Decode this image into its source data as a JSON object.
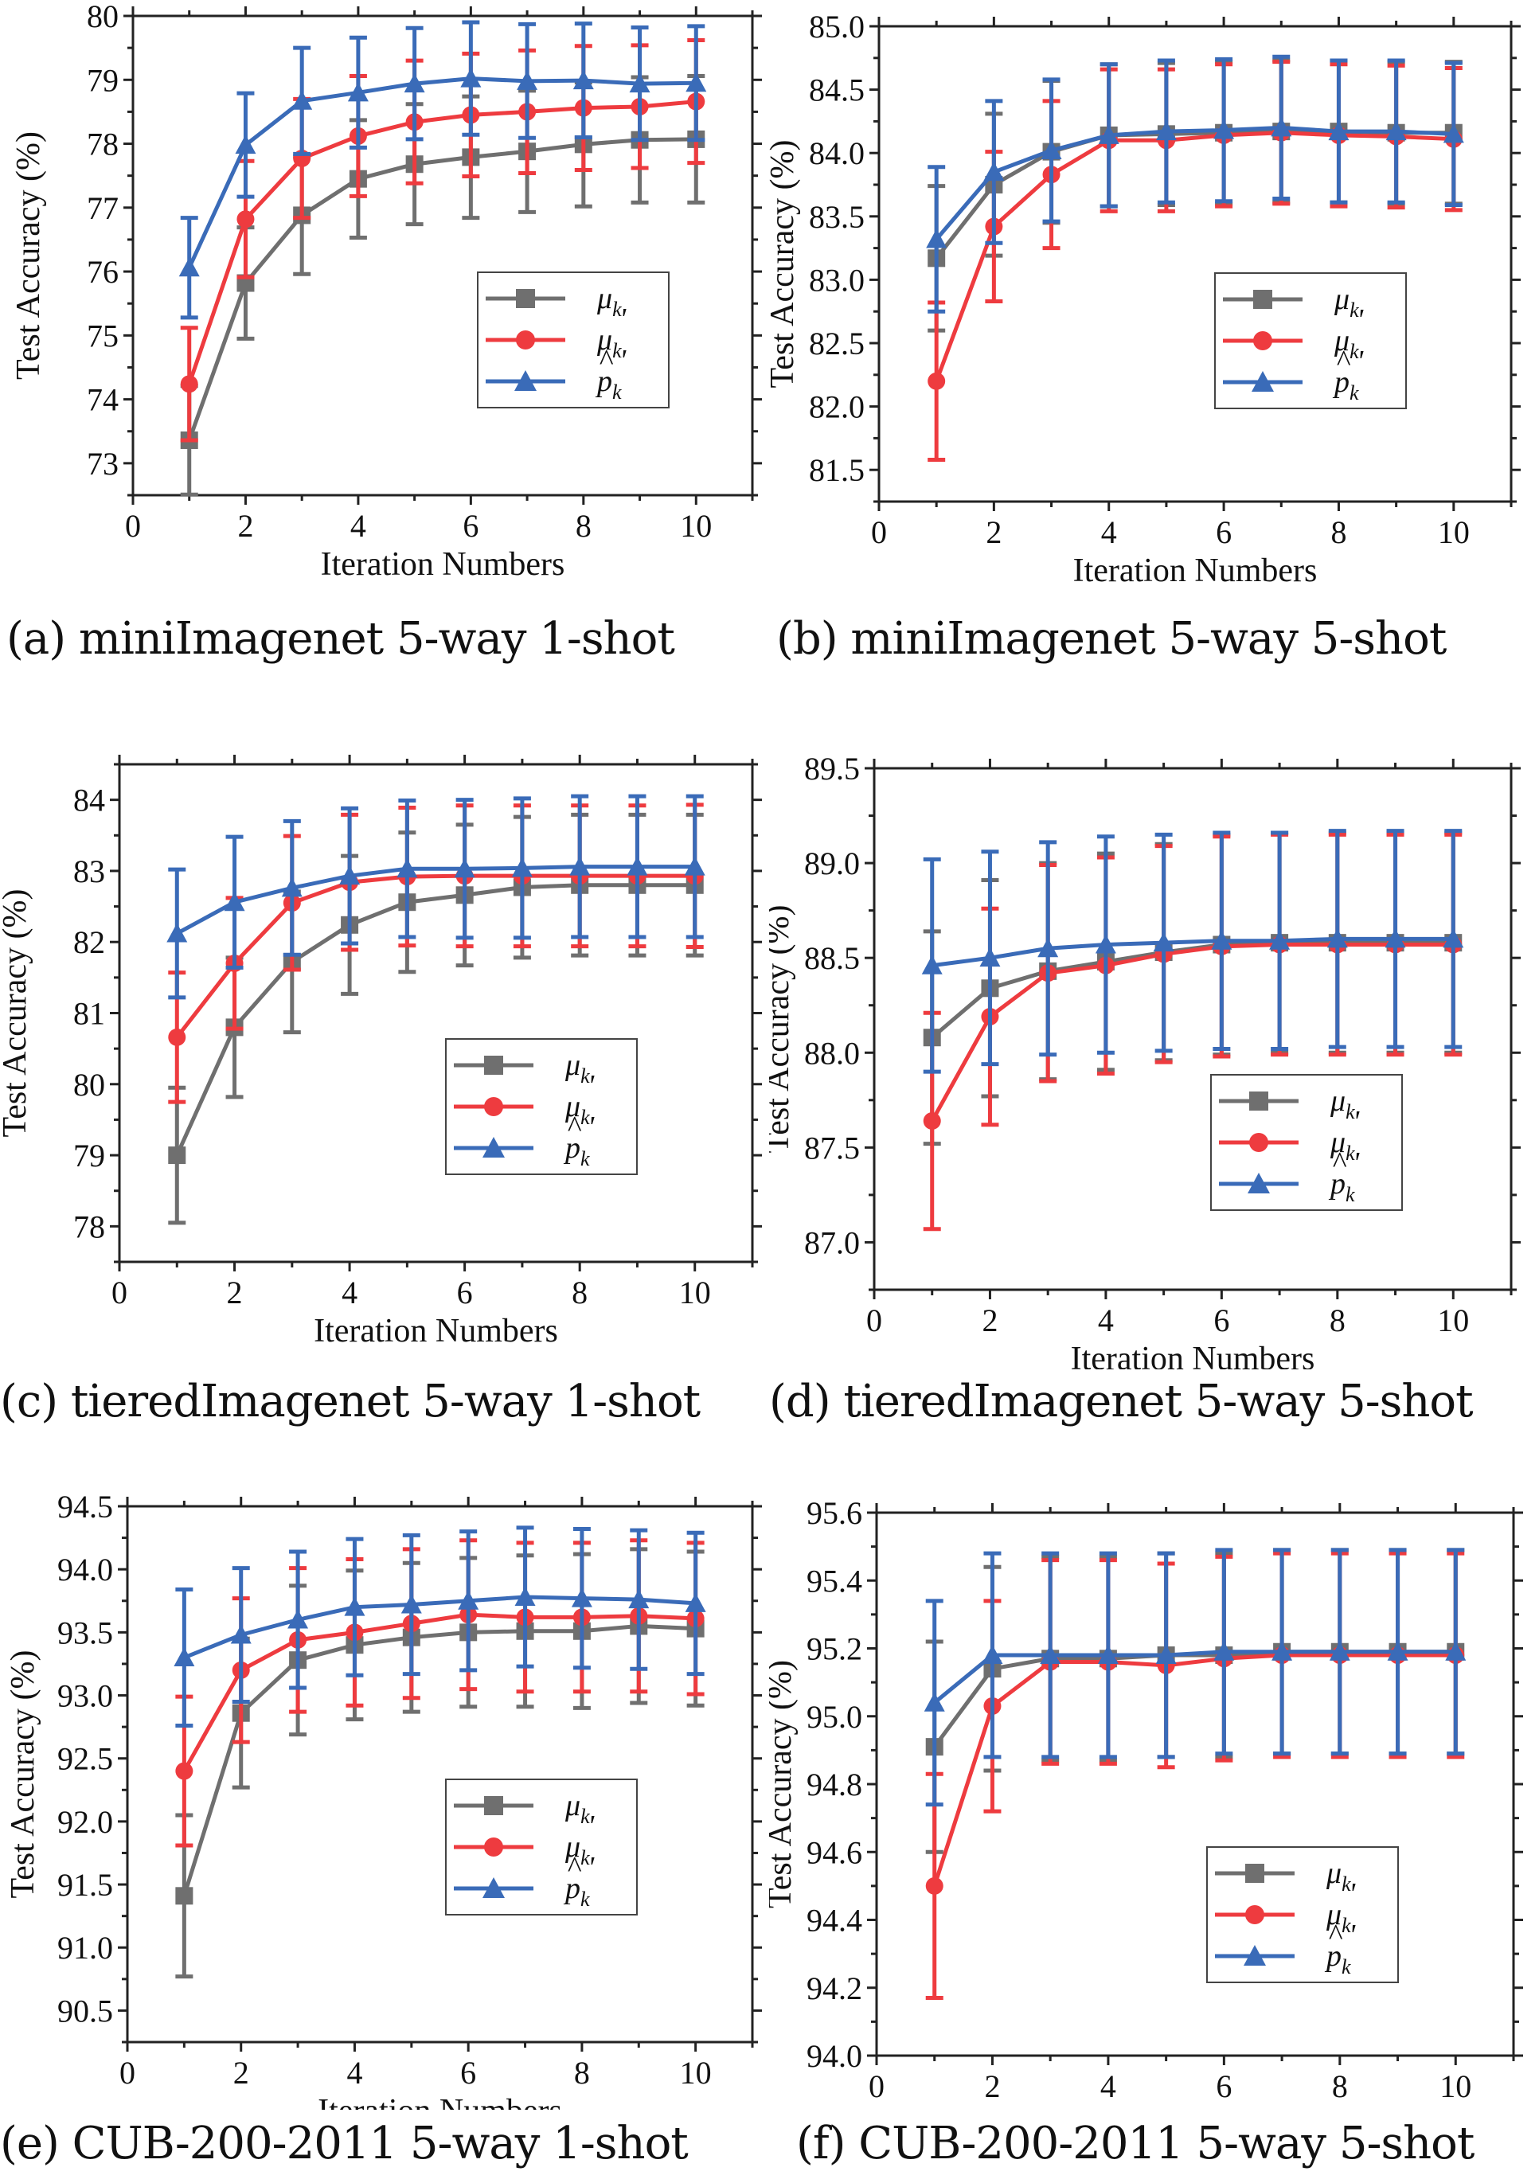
{
  "legend": [
    {
      "key": "mu_k",
      "label": "μ",
      "sub": "k",
      "prime": false,
      "hat": false,
      "color": "#6f6f6f",
      "marker": "square"
    },
    {
      "key": "mu_k_prime",
      "label": "μ",
      "sub": "k",
      "prime": true,
      "hat": false,
      "color": "#ee3b3f",
      "marker": "circle"
    },
    {
      "key": "p_hat_k_prime",
      "label": "p",
      "sub": "k",
      "prime": true,
      "hat": true,
      "color": "#3a6bb8",
      "marker": "triangle"
    }
  ],
  "captions": [
    "(a) miniImagenet 5-way 1-shot",
    "(b) miniImagenet 5-way 5-shot",
    "(c) tieredImagenet 5-way 1-shot",
    "(d) tieredImagenet 5-way 5-shot",
    "(e) CUB-200-2011 5-way 1-shot",
    "(f) CUB-200-2011 5-way 5-shot"
  ],
  "chart_data": [
    {
      "type": "line",
      "title": "(a) miniImagenet 5-way 1-shot",
      "xlabel": "Iteration Numbers",
      "ylabel": "Test Accuracy (%)",
      "xlim": [
        0,
        11
      ],
      "ylim": [
        72.5,
        80
      ],
      "xticks": [
        0,
        2,
        4,
        6,
        8,
        10
      ],
      "yticks": [
        "73",
        "74",
        "75",
        "76",
        "77",
        "78",
        "79",
        "80"
      ],
      "yticks_values": [
        73,
        74,
        75,
        76,
        77,
        78,
        79,
        80
      ],
      "legend_position": "center-right",
      "x": [
        1,
        2,
        3,
        4,
        5,
        6,
        7,
        8,
        9,
        10
      ],
      "series": [
        {
          "name": "μ_k",
          "values": [
            73.36,
            75.82,
            76.88,
            77.45,
            77.68,
            77.79,
            77.88,
            77.99,
            78.06,
            78.07
          ],
          "err": [
            0.85,
            0.87,
            0.92,
            0.92,
            0.94,
            0.95,
            0.95,
            0.97,
            0.98,
            0.99
          ]
        },
        {
          "name": "μ'_k",
          "values": [
            74.24,
            76.82,
            77.77,
            78.12,
            78.34,
            78.45,
            78.5,
            78.56,
            78.58,
            78.66
          ],
          "err": [
            0.88,
            0.91,
            0.93,
            0.94,
            0.96,
            0.96,
            0.96,
            0.97,
            0.96,
            0.96
          ]
        },
        {
          "name": "p̂'_k",
          "values": [
            76.06,
            77.98,
            78.67,
            78.8,
            78.94,
            79.02,
            78.98,
            78.99,
            78.94,
            78.95
          ],
          "err": [
            0.78,
            0.81,
            0.83,
            0.86,
            0.87,
            0.88,
            0.89,
            0.89,
            0.88,
            0.89
          ]
        }
      ]
    },
    {
      "type": "line",
      "title": "(b) miniImagenet 5-way 5-shot",
      "xlabel": "Iteration Numbers",
      "ylabel": "Test Accuracy (%)",
      "xlim": [
        0,
        11
      ],
      "ylim": [
        81.25,
        85.0
      ],
      "xticks": [
        0,
        2,
        4,
        6,
        8,
        10
      ],
      "yticks": [
        "81.5",
        "82.0",
        "82.5",
        "83.0",
        "83.5",
        "84.0",
        "84.5",
        "85.0"
      ],
      "yticks_values": [
        81.5,
        82.0,
        82.5,
        83.0,
        83.5,
        84.0,
        84.5,
        85.0
      ],
      "legend_position": "center-right",
      "x": [
        1,
        2,
        3,
        4,
        5,
        6,
        7,
        8,
        9,
        10
      ],
      "series": [
        {
          "name": "μ_k",
          "values": [
            83.17,
            83.75,
            84.01,
            84.14,
            84.15,
            84.16,
            84.17,
            84.17,
            84.16,
            84.16
          ],
          "err": [
            0.57,
            0.56,
            0.56,
            0.56,
            0.56,
            0.56,
            0.56,
            0.56,
            0.56,
            0.56
          ]
        },
        {
          "name": "μ'_k",
          "values": [
            82.2,
            83.42,
            83.83,
            84.1,
            84.1,
            84.14,
            84.16,
            84.14,
            84.13,
            84.11
          ],
          "err": [
            0.62,
            0.59,
            0.58,
            0.56,
            0.56,
            0.56,
            0.56,
            0.56,
            0.56,
            0.56
          ]
        },
        {
          "name": "p̂'_k",
          "values": [
            83.32,
            83.85,
            84.02,
            84.14,
            84.17,
            84.18,
            84.2,
            84.17,
            84.17,
            84.15
          ],
          "err": [
            0.57,
            0.56,
            0.56,
            0.56,
            0.56,
            0.56,
            0.56,
            0.56,
            0.56,
            0.56
          ]
        }
      ]
    },
    {
      "type": "line",
      "title": "(c) tieredImagenet 5-way 1-shot",
      "xlabel": "Iteration Numbers",
      "ylabel": "Test Accuracy (%)",
      "xlim": [
        0,
        11
      ],
      "ylim": [
        77.5,
        84.5
      ],
      "xticks": [
        0,
        2,
        4,
        6,
        8,
        10
      ],
      "yticks": [
        "78",
        "79",
        "80",
        "81",
        "82",
        "83",
        "84"
      ],
      "yticks_values": [
        78,
        79,
        80,
        81,
        82,
        83,
        84
      ],
      "legend_position": "center-right",
      "x": [
        1,
        2,
        3,
        4,
        5,
        6,
        7,
        8,
        9,
        10
      ],
      "series": [
        {
          "name": "μ_k",
          "values": [
            79.0,
            80.8,
            81.72,
            82.24,
            82.56,
            82.66,
            82.77,
            82.8,
            82.8,
            82.8
          ],
          "err": [
            0.95,
            0.98,
            0.99,
            0.97,
            0.98,
            0.99,
            0.99,
            0.99,
            0.99,
            0.99
          ]
        },
        {
          "name": "μ'_k",
          "values": [
            80.66,
            81.7,
            82.55,
            82.84,
            82.92,
            82.93,
            82.93,
            82.93,
            82.93,
            82.93
          ],
          "err": [
            0.91,
            0.92,
            0.94,
            0.95,
            0.97,
            0.99,
            0.99,
            0.99,
            0.99,
            1.0
          ]
        },
        {
          "name": "p̂'_k",
          "values": [
            82.12,
            82.56,
            82.76,
            82.93,
            83.03,
            83.03,
            83.04,
            83.06,
            83.06,
            83.06
          ],
          "err": [
            0.9,
            0.92,
            0.94,
            0.95,
            0.96,
            0.97,
            0.98,
            0.99,
            0.99,
            0.99
          ]
        }
      ]
    },
    {
      "type": "line",
      "title": "(d) tieredImagenet 5-way 5-shot",
      "xlabel": "Iteration Numbers",
      "ylabel": "Test Accuracy (%)",
      "xlim": [
        0,
        11
      ],
      "ylim": [
        86.75,
        89.5
      ],
      "xticks": [
        0,
        2,
        4,
        6,
        8,
        10
      ],
      "yticks": [
        "87.0",
        "87.5",
        "88.0",
        "88.5",
        "89.0",
        "89.5"
      ],
      "yticks_values": [
        87.0,
        87.5,
        88.0,
        88.5,
        89.0,
        89.5
      ],
      "legend_position": "bottom-right",
      "x": [
        1,
        2,
        3,
        4,
        5,
        6,
        7,
        8,
        9,
        10
      ],
      "series": [
        {
          "name": "μ_k",
          "values": [
            88.08,
            88.34,
            88.43,
            88.48,
            88.53,
            88.57,
            88.58,
            88.58,
            88.58,
            88.58
          ],
          "err": [
            0.56,
            0.57,
            0.57,
            0.57,
            0.57,
            0.58,
            0.58,
            0.58,
            0.58,
            0.58
          ]
        },
        {
          "name": "μ'_k",
          "values": [
            87.64,
            88.19,
            88.42,
            88.46,
            88.52,
            88.56,
            88.57,
            88.57,
            88.57,
            88.57
          ],
          "err": [
            0.57,
            0.57,
            0.57,
            0.57,
            0.57,
            0.58,
            0.58,
            0.58,
            0.58,
            0.58
          ]
        },
        {
          "name": "p̂'_k",
          "values": [
            88.46,
            88.5,
            88.55,
            88.57,
            88.58,
            88.59,
            88.59,
            88.6,
            88.6,
            88.6
          ],
          "err": [
            0.56,
            0.56,
            0.56,
            0.57,
            0.57,
            0.57,
            0.57,
            0.57,
            0.57,
            0.57
          ]
        }
      ]
    },
    {
      "type": "line",
      "title": "(e) CUB-200-2011 5-way 1-shot",
      "xlabel": "Iteration Numbers",
      "ylabel": "Test Accuracy (%)",
      "xlim": [
        0,
        11
      ],
      "ylim": [
        90.25,
        94.5
      ],
      "xticks": [
        0,
        2,
        4,
        6,
        8,
        10
      ],
      "yticks": [
        "90.5",
        "91.0",
        "91.5",
        "92.0",
        "92.5",
        "93.0",
        "93.5",
        "94.0",
        "94.5"
      ],
      "yticks_values": [
        90.5,
        91.0,
        91.5,
        92.0,
        92.5,
        93.0,
        93.5,
        94.0,
        94.5
      ],
      "legend_position": "center-right",
      "x": [
        1,
        2,
        3,
        4,
        5,
        6,
        7,
        8,
        9,
        10
      ],
      "series": [
        {
          "name": "μ_k",
          "values": [
            91.41,
            92.86,
            93.28,
            93.4,
            93.46,
            93.5,
            93.51,
            93.51,
            93.55,
            93.53
          ],
          "err": [
            0.64,
            0.59,
            0.59,
            0.59,
            0.59,
            0.59,
            0.6,
            0.61,
            0.61,
            0.61
          ]
        },
        {
          "name": "μ'_k",
          "values": [
            92.4,
            93.2,
            93.44,
            93.5,
            93.57,
            93.64,
            93.62,
            93.62,
            93.63,
            93.61
          ],
          "err": [
            0.59,
            0.57,
            0.57,
            0.58,
            0.59,
            0.59,
            0.59,
            0.59,
            0.6,
            0.6
          ]
        },
        {
          "name": "p̂'_k",
          "values": [
            93.3,
            93.48,
            93.6,
            93.7,
            93.72,
            93.75,
            93.78,
            93.77,
            93.76,
            93.73
          ],
          "err": [
            0.54,
            0.53,
            0.54,
            0.54,
            0.55,
            0.55,
            0.55,
            0.55,
            0.55,
            0.56
          ]
        }
      ]
    },
    {
      "type": "line",
      "title": "(f) CUB-200-2011 5-way 5-shot",
      "xlabel": "Iteration Numbers",
      "ylabel": "Test Accuracy (%)",
      "xlim": [
        0,
        11
      ],
      "ylim": [
        94.0,
        95.6
      ],
      "xticks": [
        0,
        2,
        4,
        6,
        8,
        10
      ],
      "yticks": [
        "94.0",
        "94.2",
        "94.4",
        "94.6",
        "94.8",
        "95.0",
        "95.2",
        "95.4",
        "95.6"
      ],
      "yticks_values": [
        94.0,
        94.2,
        94.4,
        94.6,
        94.8,
        95.0,
        95.2,
        95.4,
        95.6
      ],
      "legend_position": "bottom-right",
      "x": [
        1,
        2,
        3,
        4,
        5,
        6,
        7,
        8,
        9,
        10
      ],
      "series": [
        {
          "name": "μ_k",
          "values": [
            94.91,
            95.14,
            95.17,
            95.17,
            95.18,
            95.18,
            95.19,
            95.19,
            95.19,
            95.19
          ],
          "err": [
            0.31,
            0.3,
            0.3,
            0.3,
            0.3,
            0.3,
            0.3,
            0.3,
            0.3,
            0.3
          ]
        },
        {
          "name": "μ'_k",
          "values": [
            94.5,
            95.03,
            95.16,
            95.16,
            95.15,
            95.17,
            95.18,
            95.18,
            95.18,
            95.18
          ],
          "err": [
            0.33,
            0.31,
            0.3,
            0.3,
            0.3,
            0.3,
            0.3,
            0.3,
            0.3,
            0.3
          ]
        },
        {
          "name": "p̂'_k",
          "values": [
            95.04,
            95.18,
            95.18,
            95.18,
            95.18,
            95.19,
            95.19,
            95.19,
            95.19,
            95.19
          ],
          "err": [
            0.3,
            0.3,
            0.3,
            0.3,
            0.3,
            0.3,
            0.3,
            0.3,
            0.3,
            0.3
          ]
        }
      ]
    }
  ]
}
